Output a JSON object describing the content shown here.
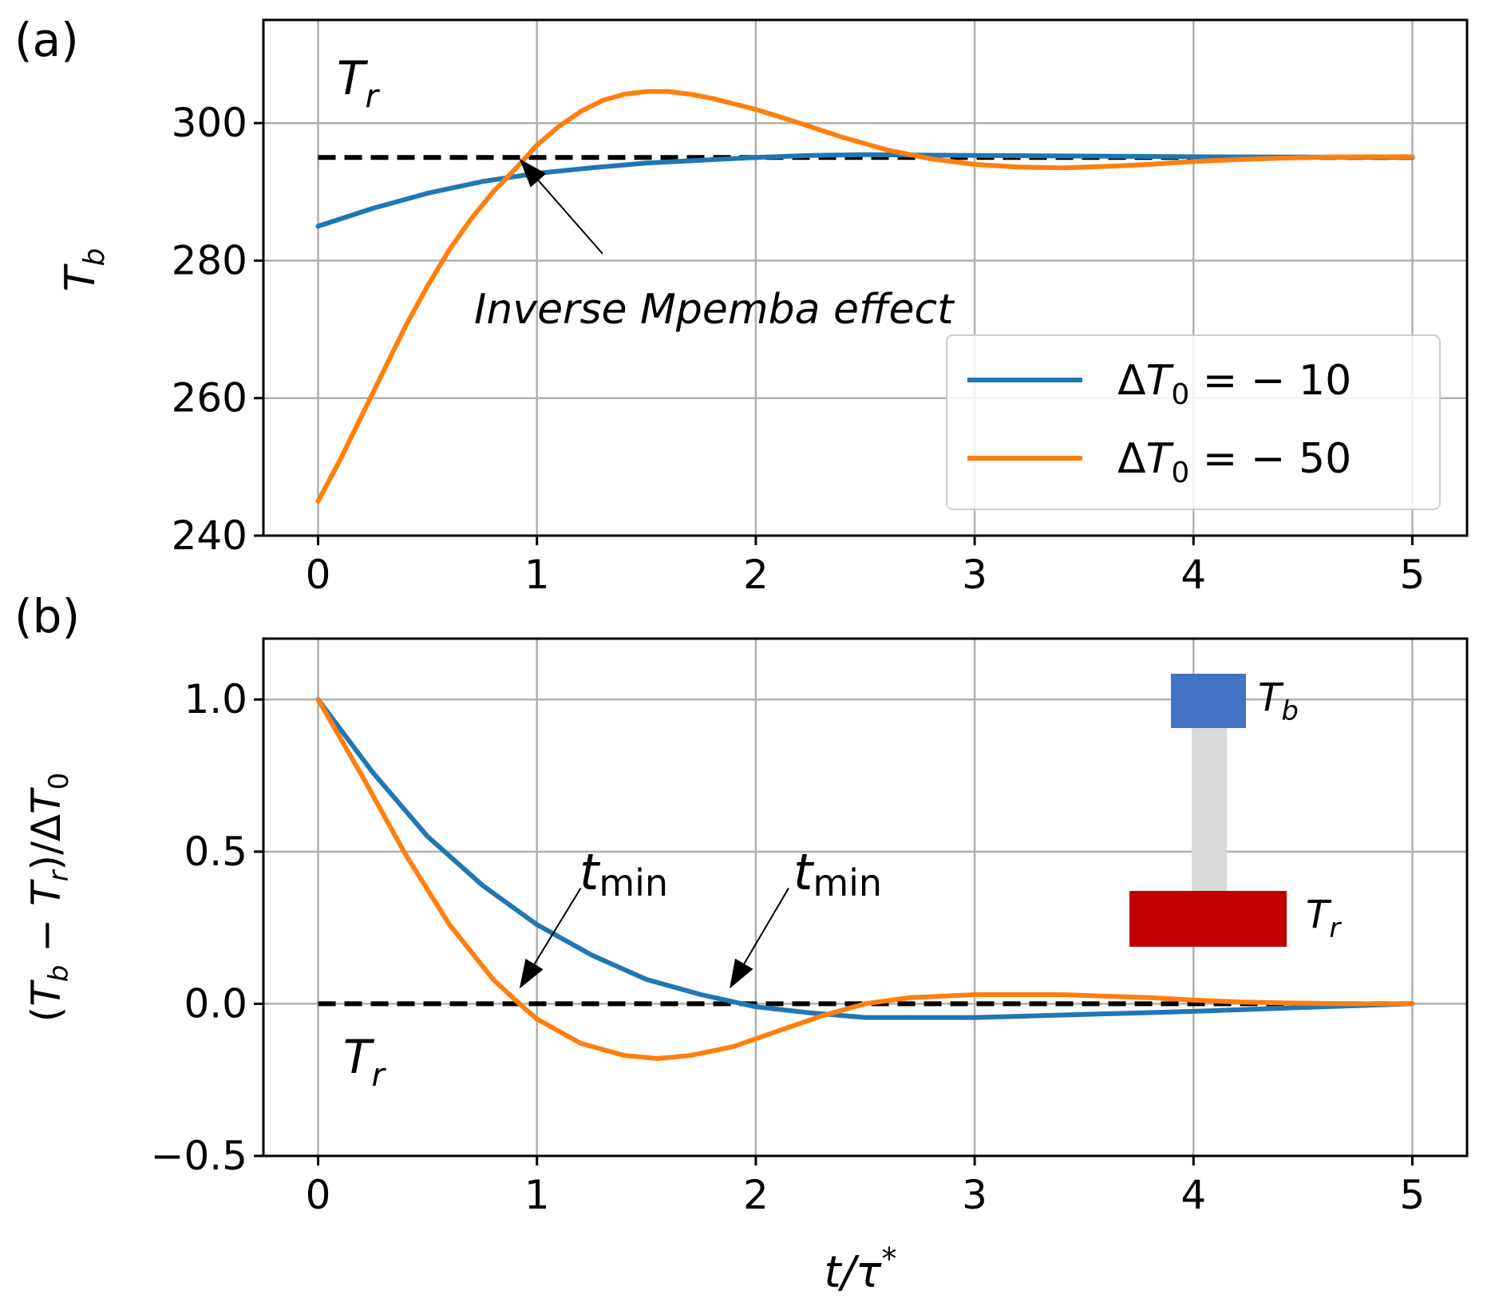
{
  "chart_data": [
    {
      "panel": "(a)",
      "type": "line",
      "ylabel_var": "T",
      "ylabel_sub": "b",
      "xlim": [
        -0.25,
        5.25
      ],
      "ylim": [
        240,
        315
      ],
      "xticks": [
        "0",
        "1",
        "2",
        "3",
        "4",
        "5"
      ],
      "yticks": [
        "240",
        "260",
        "280",
        "300"
      ],
      "ytick_values": [
        240,
        260,
        280,
        300
      ],
      "reference": {
        "name": "T_r",
        "var": "T",
        "sub": "r",
        "y": 295,
        "style": "dashed"
      },
      "annotation": {
        "text": "Inverse Mpemba effect",
        "arrow_to": [
          0.92,
          294.8
        ],
        "arrow_from": [
          1.3,
          281
        ]
      },
      "legend": {
        "position": "lower-right",
        "entries": [
          {
            "prefix": "Δ",
            "var": "T",
            "sub": "0",
            "suffix": " = − 10"
          },
          {
            "prefix": "Δ",
            "var": "T",
            "sub": "0",
            "suffix": " = − 50"
          }
        ]
      },
      "series": [
        {
          "name": "ΔT0 = −10",
          "color": "#1f77b4",
          "x": [
            0,
            0.25,
            0.5,
            0.75,
            1,
            1.25,
            1.5,
            1.75,
            2,
            2.25,
            2.5,
            3,
            3.5,
            4,
            4.5,
            5
          ],
          "y": [
            285,
            287.6,
            289.8,
            291.5,
            292.7,
            293.5,
            294.2,
            294.6,
            295.0,
            295.3,
            295.4,
            295.3,
            295.2,
            295.1,
            295.05,
            295.0
          ]
        },
        {
          "name": "ΔT0 = −50",
          "color": "#ff7f0e",
          "x": [
            0,
            0.1,
            0.2,
            0.3,
            0.4,
            0.5,
            0.6,
            0.7,
            0.8,
            0.9,
            1.0,
            1.1,
            1.2,
            1.3,
            1.4,
            1.5,
            1.6,
            1.7,
            1.8,
            1.9,
            2.0,
            2.2,
            2.4,
            2.6,
            2.8,
            3.0,
            3.2,
            3.4,
            3.6,
            3.8,
            4.0,
            4.2,
            4.4,
            4.6,
            4.8,
            5.0
          ],
          "y": [
            245,
            251,
            257.5,
            264,
            270.5,
            276.3,
            281.6,
            286.1,
            290.0,
            293.3,
            296.8,
            299.5,
            301.7,
            303.3,
            304.2,
            304.6,
            304.6,
            304.2,
            303.6,
            302.8,
            302.0,
            300.0,
            297.9,
            296.1,
            294.8,
            294.0,
            293.6,
            293.5,
            293.7,
            294.0,
            294.4,
            294.7,
            294.9,
            295.05,
            295.1,
            295.1
          ]
        }
      ]
    },
    {
      "panel": "(b)",
      "type": "line",
      "xlabel": "t/τ",
      "xlabel_sup": "*",
      "ylabel": "(T_b − T_r)/ΔT_0",
      "xlim": [
        -0.25,
        5.25
      ],
      "ylim": [
        -0.5,
        1.2
      ],
      "xticks": [
        "0",
        "1",
        "2",
        "3",
        "4",
        "5"
      ],
      "yticks": [
        "−0.5",
        "0.0",
        "0.5",
        "1.0"
      ],
      "ytick_values": [
        -0.5,
        0.0,
        0.5,
        1.0
      ],
      "reference": {
        "name": "T_r",
        "var": "T",
        "sub": "r",
        "y": 0.0,
        "style": "dashed"
      },
      "annotations": [
        {
          "var": "t",
          "sub": "min",
          "arrow_to": [
            0.92,
            0.05
          ],
          "arrow_from": [
            1.2,
            0.38
          ]
        },
        {
          "var": "t",
          "sub": "min",
          "arrow_to": [
            1.88,
            0.05
          ],
          "arrow_from": [
            2.15,
            0.38
          ]
        }
      ],
      "inset": {
        "top": {
          "var": "T",
          "sub": "b",
          "color": "#4472c4"
        },
        "link_color": "#d9d9d9",
        "bottom": {
          "var": "T",
          "sub": "r",
          "color": "#c00000"
        }
      },
      "series": [
        {
          "name": "ΔT0 = −10",
          "color": "#1f77b4",
          "x": [
            0,
            0.25,
            0.5,
            0.75,
            1,
            1.25,
            1.5,
            1.75,
            2,
            2.25,
            2.5,
            3,
            3.5,
            4,
            4.5,
            5
          ],
          "y": [
            1.0,
            0.76,
            0.55,
            0.39,
            0.26,
            0.16,
            0.08,
            0.03,
            -0.01,
            -0.03,
            -0.045,
            -0.045,
            -0.035,
            -0.025,
            -0.012,
            0.0
          ]
        },
        {
          "name": "ΔT0 = −50",
          "color": "#ff7f0e",
          "x": [
            0,
            0.2,
            0.4,
            0.6,
            0.8,
            0.92,
            1.0,
            1.2,
            1.4,
            1.55,
            1.7,
            1.9,
            2.1,
            2.3,
            2.5,
            2.7,
            3.0,
            3.2,
            3.4,
            3.6,
            3.8,
            4.0,
            4.2,
            4.4,
            4.6,
            4.8,
            5.0
          ],
          "y": [
            1.0,
            0.75,
            0.49,
            0.26,
            0.08,
            0.0,
            -0.05,
            -0.13,
            -0.17,
            -0.18,
            -0.17,
            -0.14,
            -0.09,
            -0.04,
            0.0,
            0.02,
            0.03,
            0.03,
            0.03,
            0.025,
            0.02,
            0.012,
            0.006,
            0.003,
            0.001,
            0.0,
            0.0
          ]
        }
      ]
    }
  ]
}
